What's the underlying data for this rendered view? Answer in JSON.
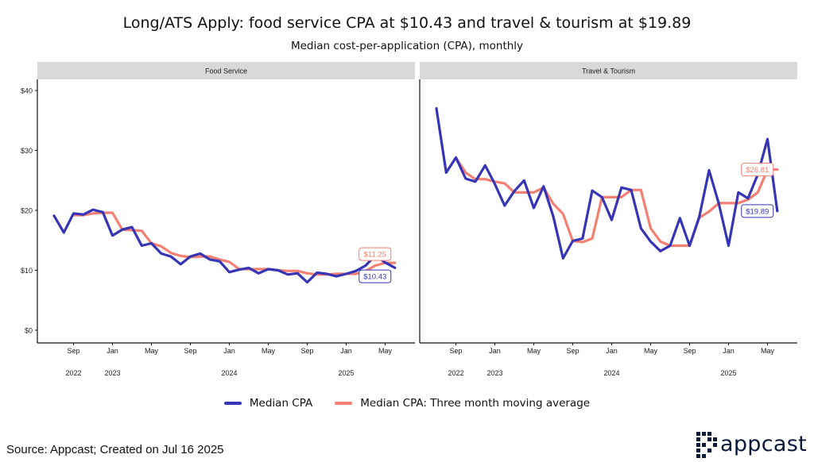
{
  "title": "Long/ATS Apply: food service CPA at $10.43 and travel & tourism at $19.89",
  "subtitle": "Median cost-per-application (CPA), monthly",
  "source": "Source: Appcast; Created on Jul 16 2025",
  "logo_text": "appcast",
  "colors": {
    "median": "#3535b5",
    "moving_avg": "#f47f72",
    "strip": "#d9d9d9"
  },
  "legend": [
    {
      "label": "Median CPA",
      "color": "#3535b5"
    },
    {
      "label": "Median CPA: Three month moving average",
      "color": "#f47f72"
    }
  ],
  "chart_data": [
    {
      "type": "line",
      "panel": "Food Service",
      "x": [
        "2022-07",
        "2022-08",
        "2022-09",
        "2022-10",
        "2022-11",
        "2022-12",
        "2023-01",
        "2023-02",
        "2023-03",
        "2023-04",
        "2023-05",
        "2023-06",
        "2023-07",
        "2023-08",
        "2023-09",
        "2023-10",
        "2023-11",
        "2023-12",
        "2024-01",
        "2024-02",
        "2024-03",
        "2024-04",
        "2024-05",
        "2024-06",
        "2024-07",
        "2024-08",
        "2024-09",
        "2024-10",
        "2024-11",
        "2024-12",
        "2025-01",
        "2025-02",
        "2025-03",
        "2025-04",
        "2025-05",
        "2025-06"
      ],
      "series": [
        {
          "name": "Median CPA",
          "values": [
            19.1,
            16.3,
            19.5,
            19.3,
            20.1,
            19.7,
            15.8,
            16.8,
            17.2,
            14.1,
            14.5,
            12.8,
            12.3,
            11.0,
            12.3,
            12.8,
            11.8,
            11.5,
            9.7,
            10.1,
            10.4,
            9.5,
            10.2,
            10.0,
            9.3,
            9.5,
            8.0,
            9.6,
            9.4,
            9.0,
            9.4,
            9.9,
            10.8,
            12.5,
            11.3,
            10.43
          ]
        },
        {
          "name": "Median CPA: Three month moving average",
          "values": [
            null,
            null,
            19.2,
            19.2,
            19.5,
            19.6,
            19.6,
            16.8,
            16.7,
            16.6,
            14.5,
            14.0,
            12.9,
            12.4,
            12.2,
            12.3,
            12.3,
            11.8,
            11.4,
            10.2,
            10.2,
            10.2,
            10.2,
            10.0,
            9.9,
            9.9,
            9.5,
            9.3,
            9.3,
            9.4,
            9.4,
            9.4,
            9.9,
            10.8,
            11.25,
            11.25
          ]
        }
      ],
      "label_moving_avg": "$11.25",
      "label_median": "$10.43",
      "ylim": [
        0,
        40
      ],
      "yticks": [
        "$0",
        "$10",
        "$20",
        "$30",
        "$40"
      ],
      "xticks": [
        "Sep",
        "Jan",
        "May",
        "Sep",
        "Jan",
        "May",
        "Sep",
        "Jan",
        "May"
      ],
      "years": [
        "2022",
        "2023",
        "2024",
        "2025"
      ]
    },
    {
      "type": "line",
      "panel": "Travel & Tourism",
      "x": [
        "2022-07",
        "2022-08",
        "2022-09",
        "2022-10",
        "2022-11",
        "2022-12",
        "2023-01",
        "2023-02",
        "2023-03",
        "2023-04",
        "2023-05",
        "2023-06",
        "2023-07",
        "2023-08",
        "2023-09",
        "2023-10",
        "2023-11",
        "2023-12",
        "2024-01",
        "2024-02",
        "2024-03",
        "2024-04",
        "2024-05",
        "2024-06",
        "2024-07",
        "2024-08",
        "2024-09",
        "2024-10",
        "2024-11",
        "2024-12",
        "2025-01",
        "2025-02",
        "2025-03",
        "2025-04",
        "2025-05",
        "2025-06"
      ],
      "series": [
        {
          "name": "Median CPA",
          "values": [
            37.0,
            26.3,
            28.8,
            25.3,
            24.8,
            27.5,
            24.4,
            20.8,
            23.2,
            25.0,
            20.4,
            24.0,
            19.0,
            12.0,
            14.9,
            15.3,
            23.3,
            22.2,
            18.4,
            23.8,
            23.4,
            17.0,
            14.8,
            13.2,
            14.1,
            18.7,
            14.1,
            19.0,
            26.7,
            21.1,
            14.1,
            23.0,
            22.0,
            26.0,
            31.9,
            19.89
          ]
        },
        {
          "name": "Median CPA: Three month moving average",
          "values": [
            null,
            null,
            28.8,
            26.3,
            25.2,
            25.2,
            24.8,
            24.5,
            23.0,
            23.0,
            23.0,
            23.8,
            21.1,
            19.4,
            14.9,
            14.7,
            15.3,
            22.2,
            22.2,
            22.2,
            23.4,
            23.4,
            17.0,
            14.8,
            14.1,
            14.1,
            14.1,
            18.8,
            19.8,
            21.2,
            21.2,
            21.2,
            21.8,
            23.0,
            26.81,
            26.81
          ]
        }
      ],
      "label_moving_avg": "$26.81",
      "label_median": "$19.89",
      "ylim": [
        0,
        40
      ],
      "xticks": [
        "Sep",
        "Jan",
        "May",
        "Sep",
        "Jan",
        "May",
        "Sep",
        "Jan",
        "May"
      ],
      "years": [
        "2022",
        "2023",
        "2024",
        "2025"
      ]
    }
  ]
}
